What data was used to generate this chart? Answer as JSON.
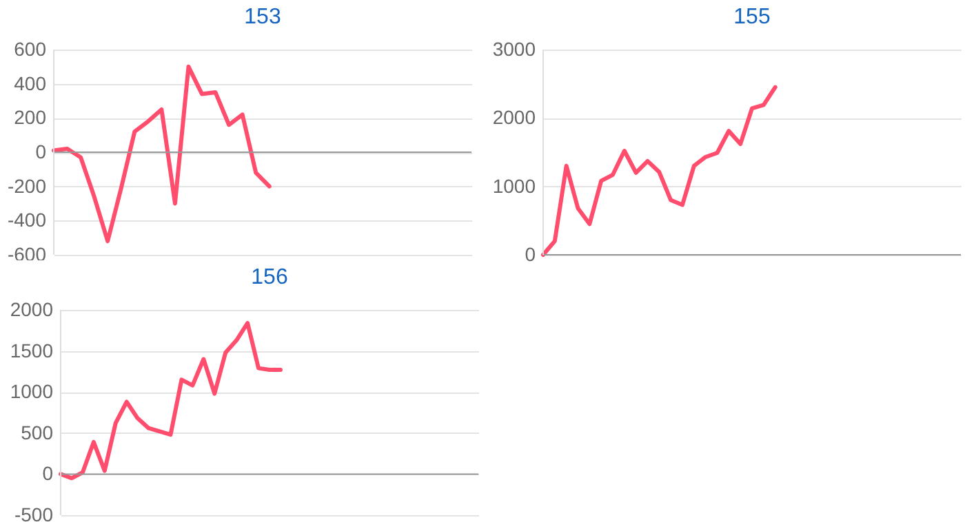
{
  "chart_data": [
    {
      "type": "line",
      "title": "153",
      "categories": [
        null,
        null,
        null,
        null,
        null,
        null,
        null,
        null,
        null,
        null,
        null,
        null,
        null,
        null,
        null,
        null,
        null,
        null,
        null,
        null,
        null,
        null,
        null,
        null,
        null,
        null,
        null,
        null,
        null,
        null,
        null,
        null
      ],
      "series": [
        {
          "color": "#ff4d6d",
          "values": [
            10,
            20,
            -30,
            -260,
            -520,
            -210,
            120,
            180,
            250,
            -300,
            500,
            340,
            350,
            160,
            220,
            -120,
            -200,
            null,
            null,
            null,
            null,
            null,
            null,
            null,
            null,
            null,
            null,
            null,
            null,
            null,
            null,
            null
          ]
        }
      ],
      "ylim": [
        -600,
        600
      ],
      "yticks": [
        -600,
        -400,
        -200,
        0,
        200,
        400,
        600
      ],
      "grid": "y",
      "tick_labels": "y",
      "ref_lines": [
        {
          "axis": "y",
          "value": 0
        }
      ]
    },
    {
      "type": "line",
      "title": "155",
      "categories": [
        null,
        null,
        null,
        null,
        null,
        null,
        null,
        null,
        null,
        null,
        null,
        null,
        null,
        null,
        null,
        null,
        null,
        null,
        null,
        null,
        null,
        null,
        null,
        null,
        null,
        null,
        null,
        null,
        null,
        null,
        null,
        null,
        null,
        null,
        null,
        null,
        null
      ],
      "series": [
        {
          "color": "#ff4d6d",
          "values": [
            0,
            200,
            1300,
            680,
            450,
            1080,
            1170,
            1520,
            1200,
            1370,
            1210,
            800,
            730,
            1300,
            1430,
            1490,
            1810,
            1620,
            2140,
            2190,
            2450,
            null,
            null,
            null,
            null,
            null,
            null,
            null,
            null,
            null,
            null,
            null,
            null,
            null,
            null,
            null,
            null
          ]
        }
      ],
      "ylim": [
        0,
        3000
      ],
      "yticks": [
        0,
        1000,
        2000,
        3000
      ],
      "grid": "y",
      "tick_labels": "y",
      "ref_lines": [
        {
          "axis": "y",
          "value": 0
        }
      ]
    },
    {
      "type": "line",
      "title": "156",
      "categories": [
        null,
        null,
        null,
        null,
        null,
        null,
        null,
        null,
        null,
        null,
        null,
        null,
        null,
        null,
        null,
        null,
        null,
        null,
        null,
        null,
        null,
        null,
        null,
        null,
        null,
        null,
        null,
        null,
        null,
        null,
        null,
        null,
        null,
        null,
        null,
        null,
        null,
        null,
        null
      ],
      "series": [
        {
          "color": "#ff4d6d",
          "values": [
            0,
            -50,
            20,
            390,
            40,
            620,
            880,
            680,
            560,
            520,
            480,
            1150,
            1080,
            1400,
            980,
            1480,
            1630,
            1840,
            1290,
            1270,
            1270,
            null,
            null,
            null,
            null,
            null,
            null,
            null,
            null,
            null,
            null,
            null,
            null,
            null,
            null,
            null,
            null,
            null,
            null
          ]
        }
      ],
      "ylim": [
        -500,
        2000
      ],
      "yticks": [
        -500,
        0,
        500,
        1000,
        1500,
        2000
      ],
      "grid": "y",
      "tick_labels": "y",
      "ref_lines": [
        {
          "axis": "y",
          "value": 0
        }
      ]
    }
  ]
}
